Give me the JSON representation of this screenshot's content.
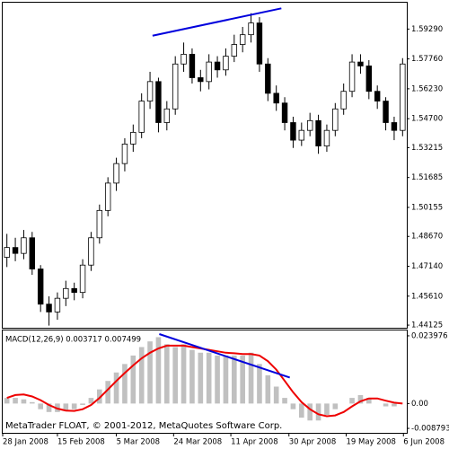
{
  "chart_data": [
    {
      "type": "candlestick",
      "xlim": [
        -0.5,
        47.5
      ],
      "ylim": [
        1.4399,
        1.6064
      ],
      "yticks": [
        {
          "value": 1.5929,
          "label": "1.59290"
        },
        {
          "value": 1.5776,
          "label": "1.57760"
        },
        {
          "value": 1.5623,
          "label": "1.56230"
        },
        {
          "value": 1.547,
          "label": "1.54700"
        },
        1.53215,
        1.51685,
        1.50155,
        {
          "value": 1.4867,
          "label": "1.48670"
        },
        {
          "value": 1.4714,
          "label": "1.47140"
        },
        {
          "value": 1.4561,
          "label": "1.45610"
        },
        1.44125
      ],
      "up_color": "#ffffff",
      "down_color": "#000000",
      "open": [
        1.476,
        1.481,
        1.478,
        1.486,
        1.47,
        1.452,
        1.448,
        1.455,
        1.46,
        1.458,
        1.472,
        1.486,
        1.5,
        1.514,
        1.524,
        1.534,
        1.54,
        1.556,
        1.566,
        1.545,
        1.552,
        1.575,
        1.58,
        1.568,
        1.566,
        1.576,
        1.572,
        1.579,
        1.585,
        1.59,
        1.596,
        1.575,
        1.56,
        1.555,
        1.545,
        1.536,
        1.541,
        1.546,
        1.533,
        1.541,
        1.552,
        1.561,
        1.576,
        1.574,
        1.561,
        1.556,
        1.545,
        1.541
      ],
      "high": [
        1.488,
        1.486,
        1.49,
        1.489,
        1.472,
        1.456,
        1.458,
        1.464,
        1.463,
        1.475,
        1.489,
        1.503,
        1.517,
        1.527,
        1.537,
        1.544,
        1.56,
        1.571,
        1.568,
        1.556,
        1.579,
        1.586,
        1.583,
        1.572,
        1.58,
        1.579,
        1.583,
        1.59,
        1.594,
        1.601,
        1.599,
        1.578,
        1.564,
        1.558,
        1.548,
        1.545,
        1.55,
        1.549,
        1.544,
        1.555,
        1.565,
        1.58,
        1.58,
        1.577,
        1.564,
        1.558,
        1.548,
        1.578
      ],
      "low": [
        1.471,
        1.474,
        1.475,
        1.467,
        1.448,
        1.441,
        1.444,
        1.451,
        1.454,
        1.455,
        1.469,
        1.483,
        1.497,
        1.51,
        1.52,
        1.53,
        1.537,
        1.552,
        1.54,
        1.541,
        1.549,
        1.571,
        1.565,
        1.561,
        1.562,
        1.568,
        1.569,
        1.576,
        1.581,
        1.586,
        1.571,
        1.556,
        1.551,
        1.541,
        1.532,
        1.533,
        1.538,
        1.529,
        1.53,
        1.538,
        1.549,
        1.558,
        1.57,
        1.557,
        1.552,
        1.541,
        1.536,
        1.538
      ],
      "close": [
        1.481,
        1.478,
        1.486,
        1.47,
        1.452,
        1.448,
        1.455,
        1.46,
        1.458,
        1.472,
        1.486,
        1.5,
        1.514,
        1.524,
        1.534,
        1.54,
        1.556,
        1.566,
        1.545,
        1.552,
        1.575,
        1.58,
        1.568,
        1.566,
        1.576,
        1.572,
        1.579,
        1.585,
        1.59,
        1.596,
        1.575,
        1.56,
        1.555,
        1.545,
        1.536,
        1.541,
        1.546,
        1.533,
        1.541,
        1.552,
        1.561,
        1.576,
        1.574,
        1.561,
        1.556,
        1.545,
        1.541,
        1.575
      ],
      "trendline": {
        "x": [
          17.3,
          32.6
        ],
        "y": [
          1.5895,
          1.6035
        ],
        "color": "#0000dd"
      }
    },
    {
      "type": "macd",
      "label": "MACD(12,26,9) 0.003717 0.007499",
      "footer": "MetaTrader FLOAT, © 2001-2012, MetaQuotes Software Corp.",
      "xlim": [
        -0.5,
        47.5
      ],
      "ylim": [
        -0.01037,
        0.02587
      ],
      "yticks": [
        0.023976,
        {
          "value": 0,
          "label": "0.00"
        },
        -0.008793
      ],
      "xticks": [
        {
          "value": -0.5,
          "label": "28 Jan 2008"
        },
        {
          "value": 6.0,
          "label": "15 Feb 2008"
        },
        {
          "value": 13.0,
          "label": "5 Mar 2008"
        },
        {
          "value": 19.8,
          "label": "24 Mar 2008"
        },
        {
          "value": 26.6,
          "label": "11 Apr 2008"
        },
        {
          "value": 33.5,
          "label": "30 Apr 2008"
        },
        {
          "value": 40.3,
          "label": "19 May 2008"
        },
        {
          "value": 47.1,
          "label": "6 Jun 2008"
        }
      ],
      "series": [
        {
          "kind": "histogram",
          "color": "#c0c0c0",
          "values": [
            0.002,
            0.002,
            0.0015,
            0.0005,
            -0.002,
            -0.003,
            -0.003,
            -0.0025,
            -0.002,
            -0.0005,
            0.002,
            0.005,
            0.008,
            0.011,
            0.014,
            0.017,
            0.02,
            0.022,
            0.0235,
            0.021,
            0.02,
            0.021,
            0.019,
            0.018,
            0.018,
            0.017,
            0.017,
            0.017,
            0.017,
            0.018,
            0.014,
            0.01,
            0.006,
            0.002,
            -0.002,
            -0.005,
            -0.006,
            -0.006,
            -0.004,
            -0.002,
            0.0,
            0.002,
            0.003,
            0.002,
            0.0,
            -0.001,
            -0.001,
            0.0
          ]
        },
        {
          "kind": "signal",
          "color": "#ee0000",
          "values": [
            0.002,
            0.003,
            0.0032,
            0.0025,
            0.0012,
            -0.0005,
            -0.0018,
            -0.0025,
            -0.0026,
            -0.002,
            -0.0005,
            0.002,
            0.005,
            0.008,
            0.0108,
            0.0135,
            0.016,
            0.018,
            0.0195,
            0.0205,
            0.0205,
            0.0205,
            0.02,
            0.0195,
            0.019,
            0.0185,
            0.018,
            0.0178,
            0.0175,
            0.0175,
            0.017,
            0.015,
            0.012,
            0.008,
            0.004,
            0.0005,
            -0.002,
            -0.0038,
            -0.0045,
            -0.0042,
            -0.003,
            -0.001,
            0.0008,
            0.0018,
            0.0018,
            0.001,
            0.0003,
            0.0
          ]
        }
      ],
      "trendline": {
        "x": [
          18.1,
          33.6
        ],
        "y": [
          0.0246,
          0.0092
        ],
        "color": "#0000dd"
      }
    }
  ]
}
